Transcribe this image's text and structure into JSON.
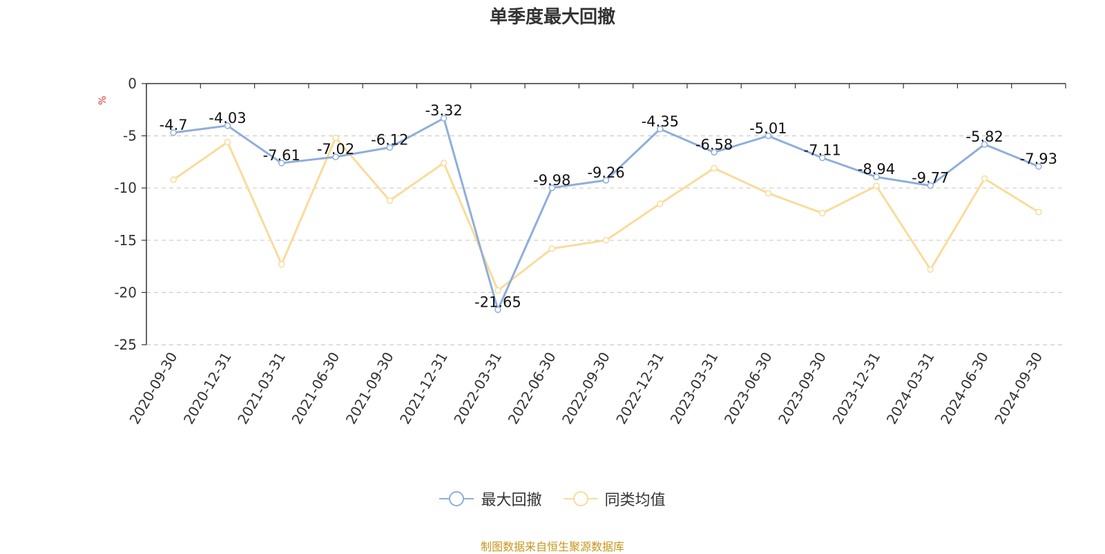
{
  "chart_data": {
    "type": "line",
    "title": "单季度最大回撤",
    "unit_label": "%",
    "categories": [
      "2020-09-30",
      "2020-12-31",
      "2021-03-31",
      "2021-06-30",
      "2021-09-30",
      "2021-12-31",
      "2022-03-31",
      "2022-06-30",
      "2022-09-30",
      "2022-12-31",
      "2023-03-31",
      "2023-06-30",
      "2023-09-30",
      "2023-12-31",
      "2024-03-31",
      "2024-06-30",
      "2024-09-30"
    ],
    "series": [
      {
        "name": "最大回撤",
        "color": "#8eaedb",
        "labels": true,
        "values": [
          -4.7,
          -4.03,
          -7.61,
          -7.02,
          -6.12,
          -3.32,
          -21.65,
          -9.98,
          -9.26,
          -4.35,
          -6.58,
          -5.01,
          -7.11,
          -8.94,
          -9.77,
          -5.82,
          -7.93
        ]
      },
      {
        "name": "同类均值",
        "color": "#fadb9a",
        "labels": false,
        "values": [
          -9.2,
          -5.6,
          -17.3,
          -5.2,
          -11.2,
          -7.6,
          -19.8,
          -15.8,
          -15.0,
          -11.5,
          -8.1,
          -10.5,
          -12.4,
          -9.8,
          -17.8,
          -9.1,
          -12.3
        ]
      }
    ],
    "ylim": [
      -25,
      0
    ],
    "yticks": [
      0,
      -5,
      -10,
      -15,
      -20,
      -25
    ],
    "grid": true,
    "legend_position": "bottom"
  },
  "source": "制图数据来自恒生聚源数据库"
}
